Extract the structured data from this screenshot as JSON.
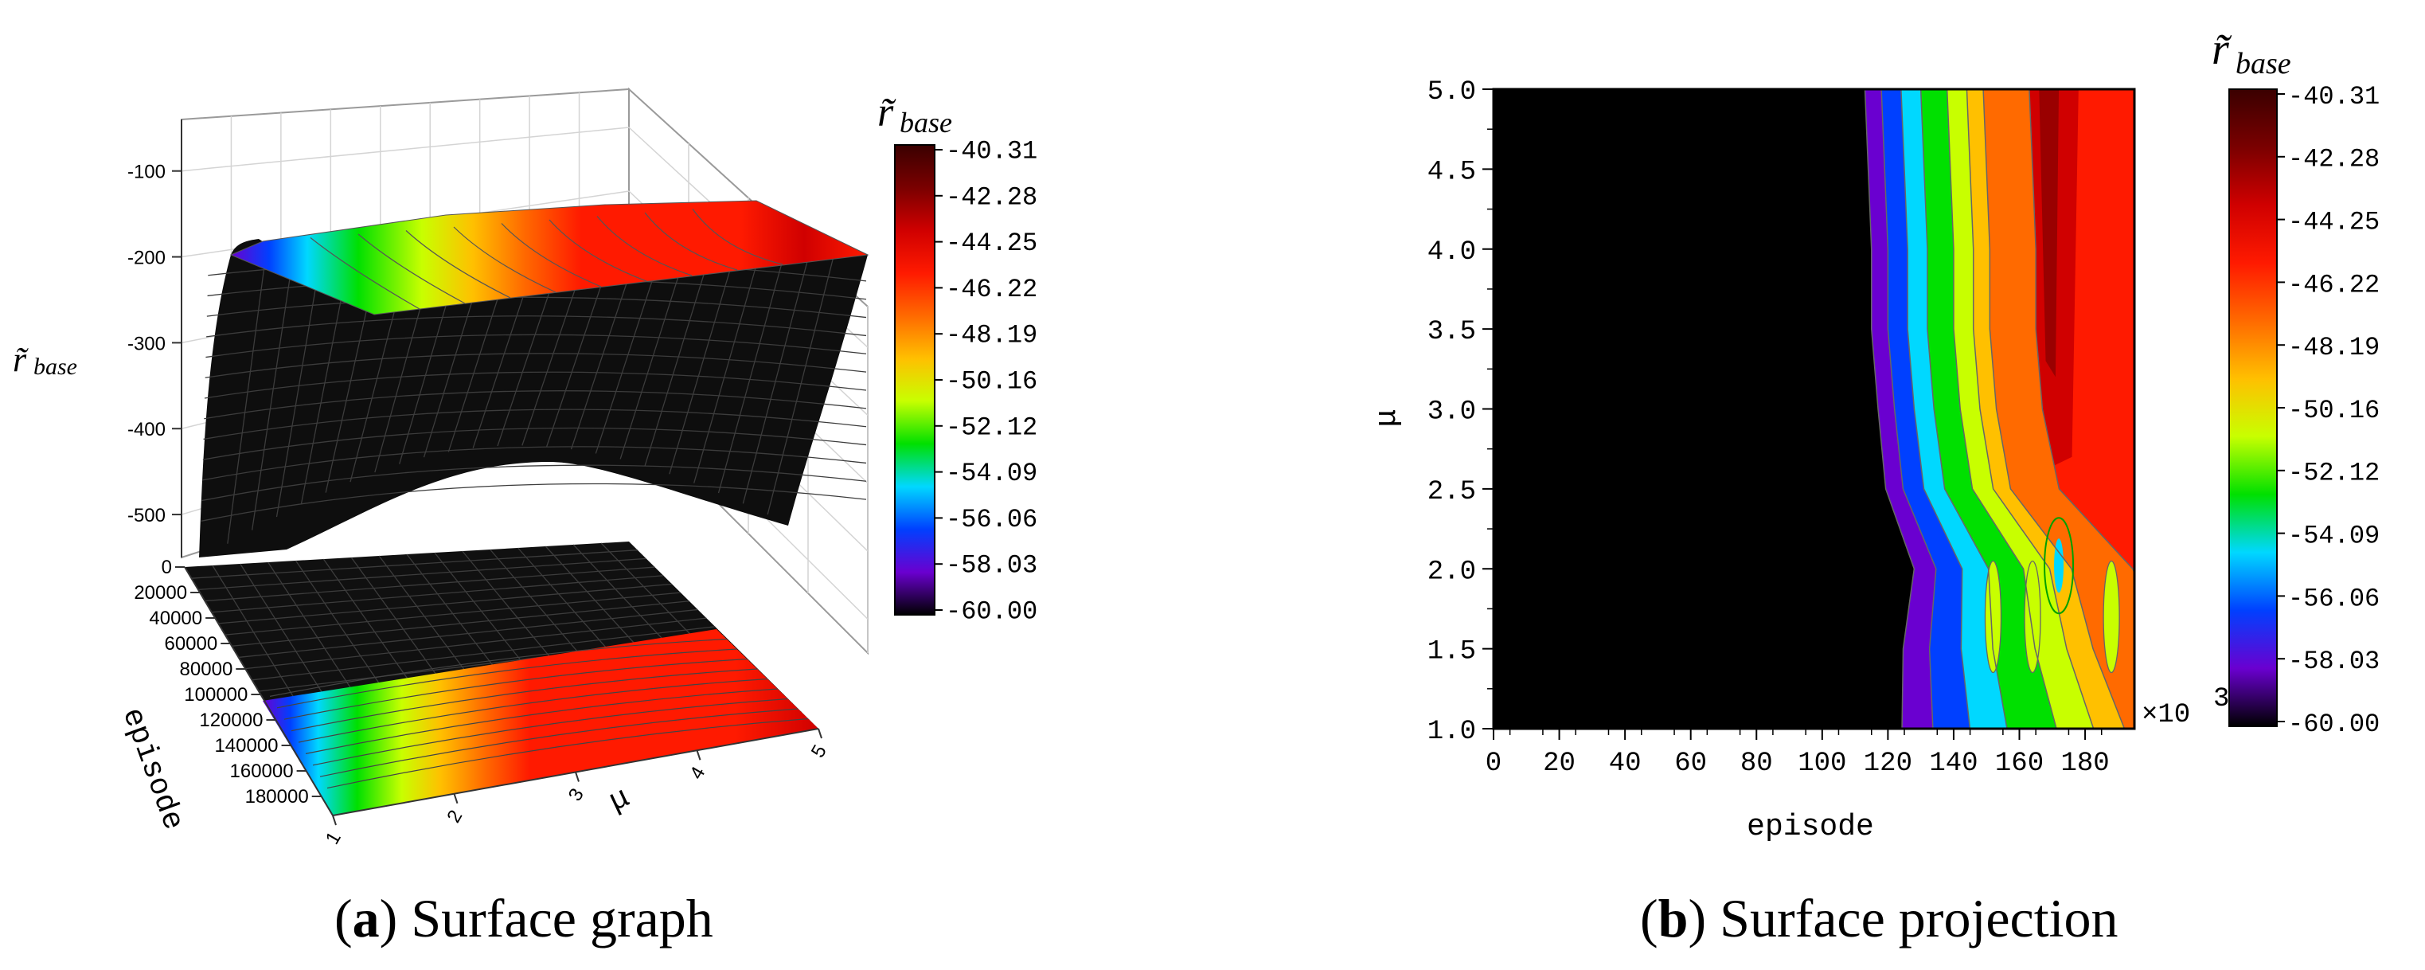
{
  "figure": {
    "caption_a": {
      "letter": "a",
      "text": "Surface graph"
    },
    "caption_b": {
      "letter": "b",
      "text": "Surface projection"
    }
  },
  "colorbar": {
    "title_symbol": "r̃",
    "title_sub": "base",
    "ticks": [
      "-40.31",
      "-42.28",
      "-44.25",
      "-46.22",
      "-48.19",
      "-50.16",
      "-52.12",
      "-54.09",
      "-56.06",
      "-58.03",
      "-60.00"
    ],
    "colors": [
      "#3a0000",
      "#7a0000",
      "#d00000",
      "#ff1a00",
      "#ff6a00",
      "#ffc000",
      "#c8ff00",
      "#00e000",
      "#00d8ff",
      "#0040ff",
      "#6a00d0",
      "#000000"
    ]
  },
  "chart_data": [
    {
      "type": "surface",
      "panel": "a",
      "xlabel": "μ",
      "ylabel": "episode",
      "zlabel_symbol": "r̃",
      "zlabel_sub": "base",
      "mu_ticks": [
        "1",
        "2",
        "3",
        "4",
        "5"
      ],
      "episode_ticks": [
        "0",
        "20000",
        "40000",
        "60000",
        "80000",
        "100000",
        "120000",
        "140000",
        "160000",
        "180000"
      ],
      "z_ticks": [
        "-100",
        "-200",
        "-300",
        "-400",
        "-500"
      ],
      "zlim": [
        -550,
        -40
      ],
      "episode_range": [
        0,
        195000
      ],
      "mu_range": [
        1,
        5
      ]
    },
    {
      "type": "heatmap",
      "panel": "b",
      "xlabel": "episode",
      "ylabel": "μ",
      "x_multiplier": "×10",
      "x_multiplier_exp": "3",
      "x_ticks": [
        "0",
        "20",
        "40",
        "60",
        "80",
        "100",
        "120",
        "140",
        "160",
        "180"
      ],
      "y_ticks": [
        "1.0",
        "1.5",
        "2.0",
        "2.5",
        "3.0",
        "3.5",
        "4.0",
        "4.5",
        "5.0"
      ],
      "xlim": [
        0,
        195
      ],
      "ylim": [
        1.0,
        5.0
      ],
      "transition_episode_by_mu": [
        {
          "mu": 1.0,
          "episode": 113
        },
        {
          "mu": 1.5,
          "episode": 115
        },
        {
          "mu": 2.0,
          "episode": 120
        },
        {
          "mu": 2.5,
          "episode": 113
        },
        {
          "mu": 3.0,
          "episode": 111
        },
        {
          "mu": 3.5,
          "episode": 109
        },
        {
          "mu": 4.0,
          "episode": 109
        },
        {
          "mu": 4.5,
          "episode": 108
        },
        {
          "mu": 5.0,
          "episode": 107
        }
      ],
      "color_band_widths": [
        6,
        5,
        6,
        8,
        6,
        6,
        5,
        6
      ],
      "plateau_value": -42.5,
      "min_value": -60.0
    }
  ]
}
